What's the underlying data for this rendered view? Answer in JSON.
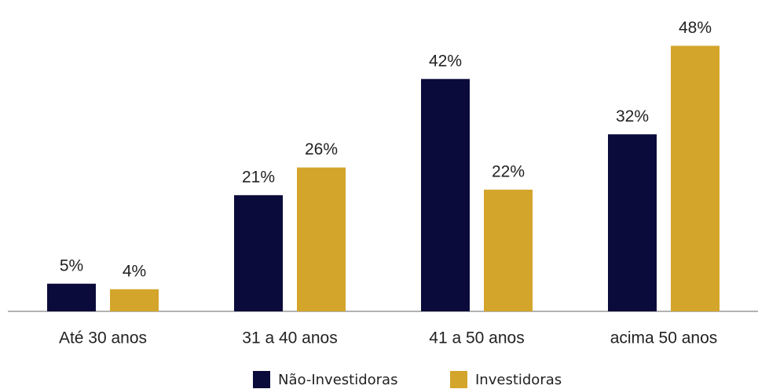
{
  "chart_data": {
    "type": "bar",
    "categories": [
      "Até 30 anos",
      "31 a 40 anos",
      "41 a 50 anos",
      "acima 50 anos"
    ],
    "series": [
      {
        "name": "Não-Investidoras",
        "color": "#0b0b3b",
        "values": [
          5,
          21,
          42,
          32
        ],
        "value_labels": [
          "5%",
          "21%",
          "42%",
          "32%"
        ]
      },
      {
        "name": "Investidoras",
        "color": "#d4a52b",
        "values": [
          4,
          26,
          22,
          48
        ],
        "value_labels": [
          "4%",
          "26%",
          "22%",
          "48%"
        ]
      }
    ],
    "ylim": [
      0,
      55
    ],
    "legend": "bottom"
  }
}
